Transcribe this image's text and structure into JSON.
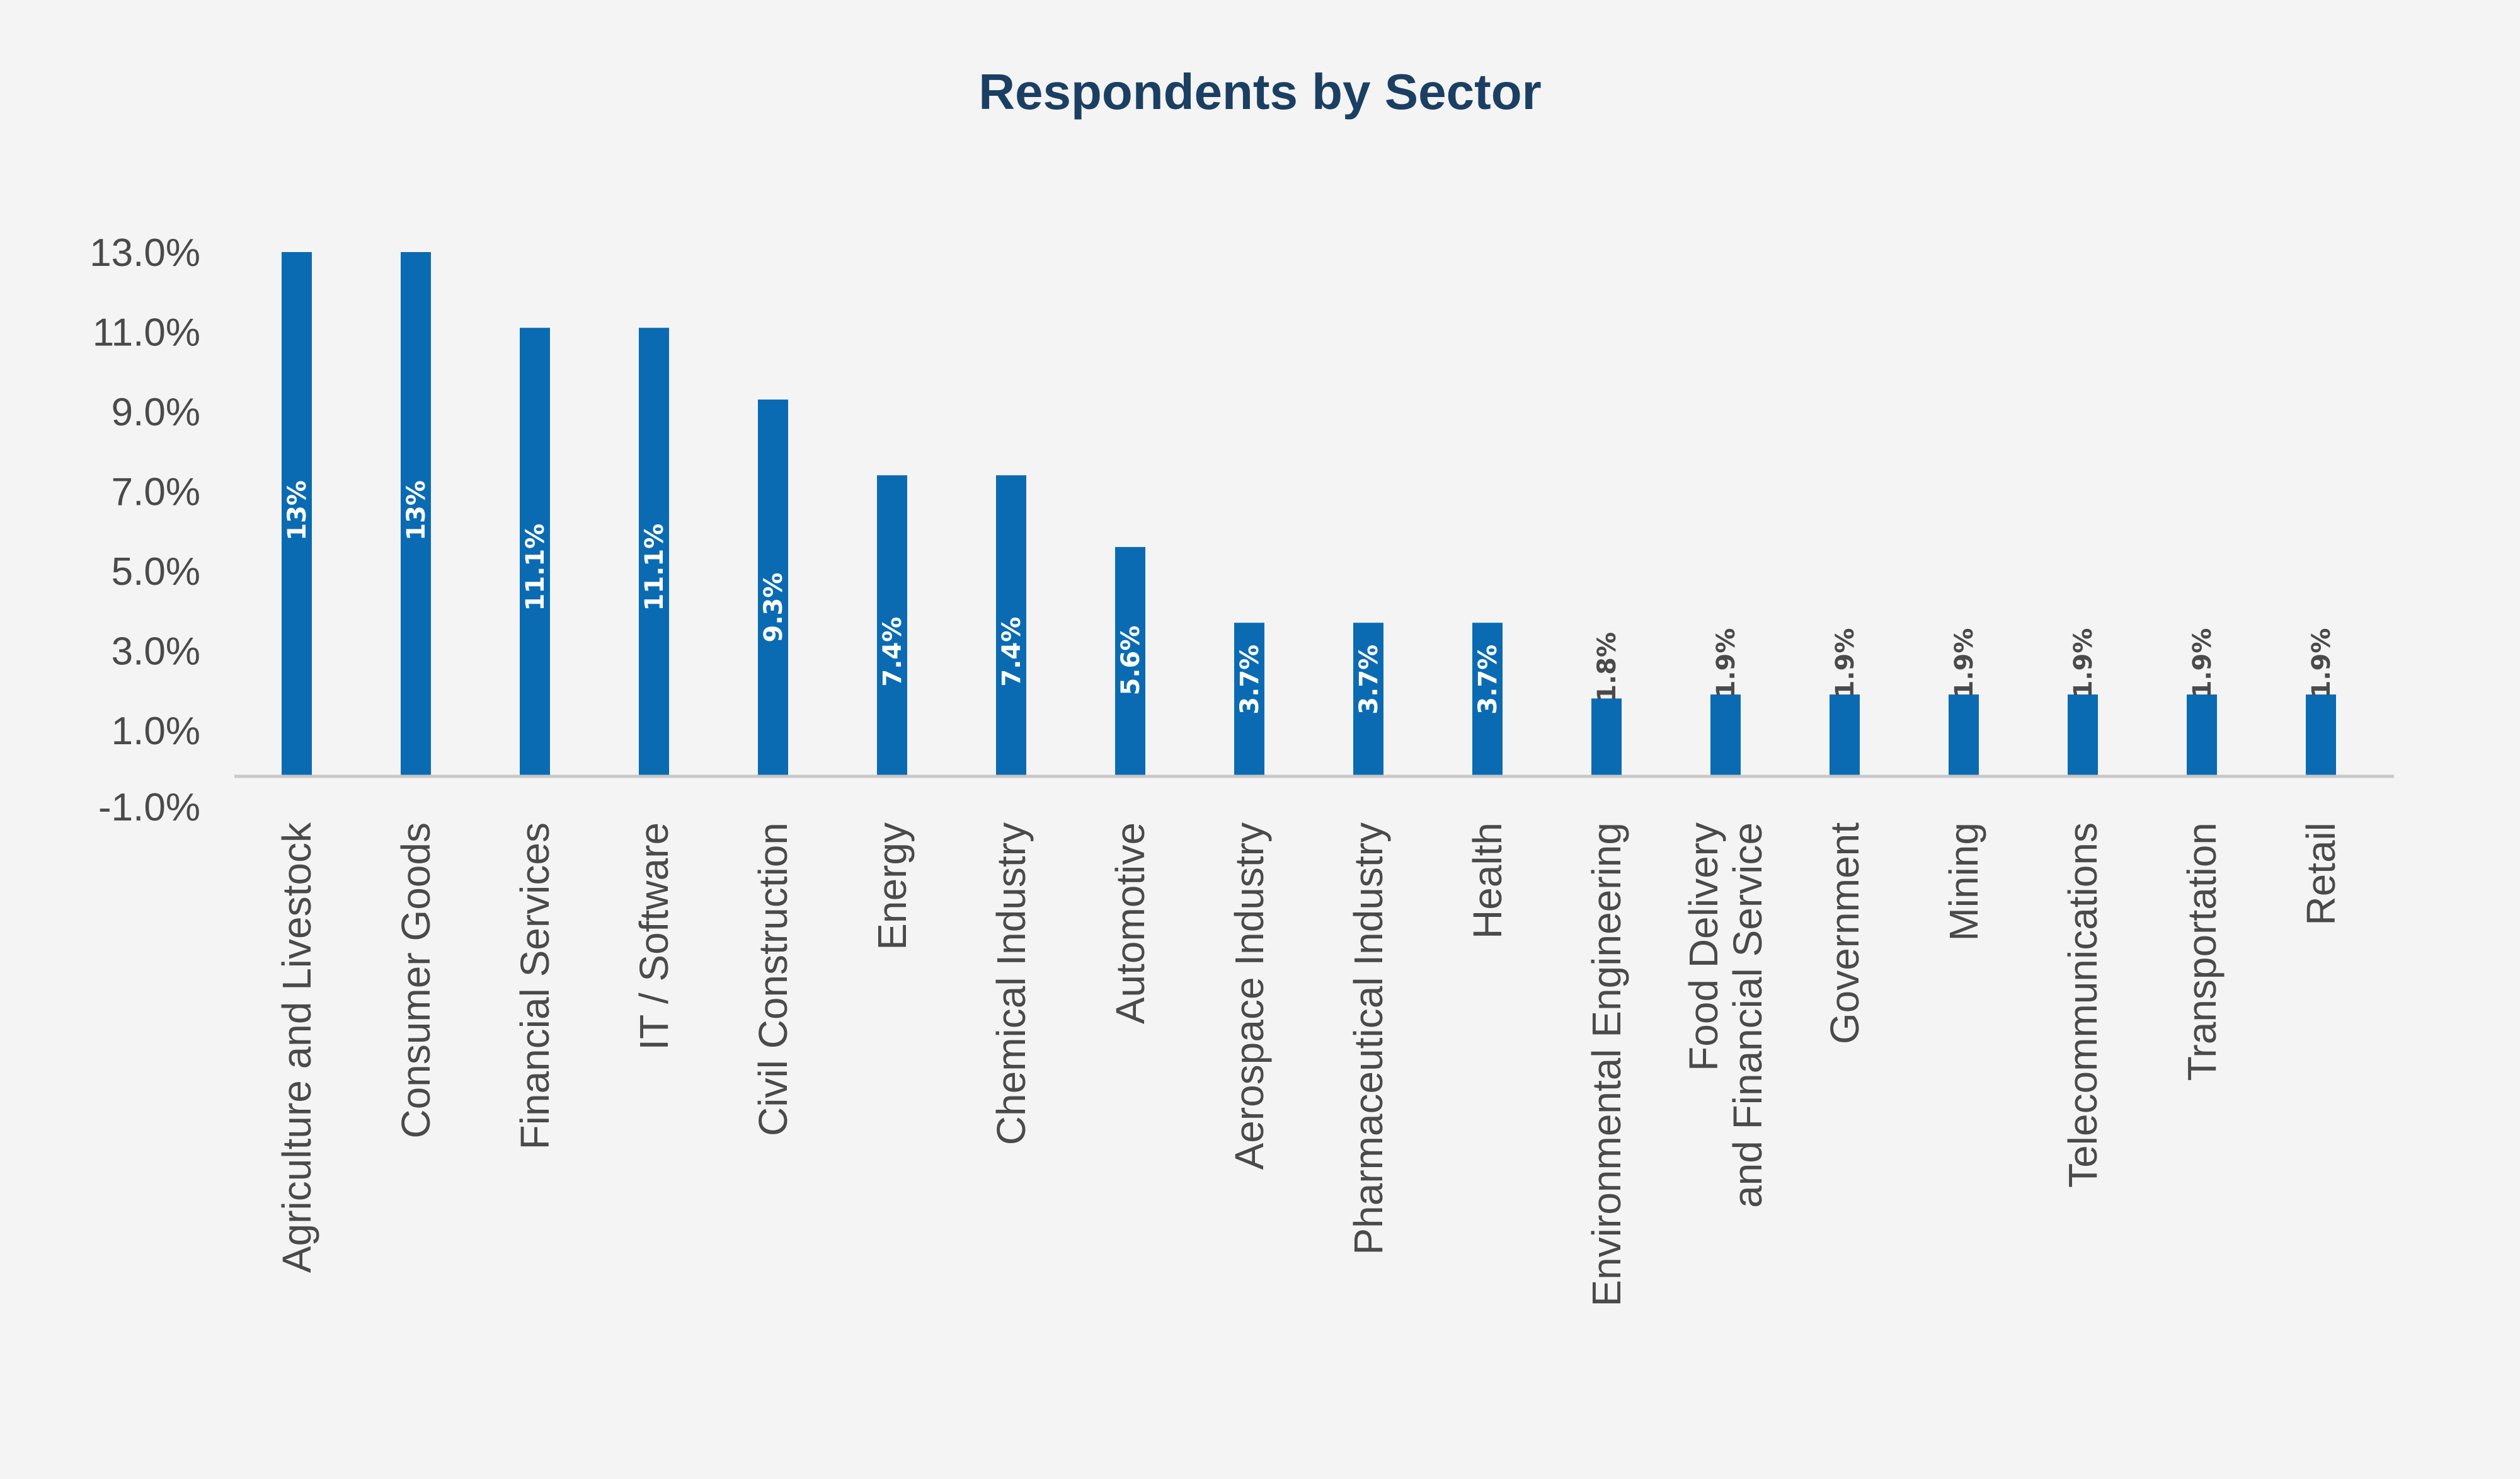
{
  "chart_data": {
    "type": "bar",
    "title": "Respondents by Sector",
    "xlabel": "",
    "ylabel": "",
    "ylim": [
      -1.0,
      14.0
    ],
    "yticks": [
      -1.0,
      1.0,
      3.0,
      5.0,
      7.0,
      9.0,
      11.0,
      13.0
    ],
    "ytick_labels": [
      "-1.0%",
      "1.0%",
      "3.0%",
      "5.0%",
      "7.0%",
      "9.0%",
      "11.0%",
      "13.0%"
    ],
    "grid": false,
    "categories": [
      [
        "Agriculture and Livestock"
      ],
      [
        "Consumer Goods"
      ],
      [
        "Financial Services"
      ],
      [
        "IT / Software"
      ],
      [
        "Civil Construction"
      ],
      [
        "Energy"
      ],
      [
        "Chemical Industry"
      ],
      [
        "Automotive"
      ],
      [
        "Aerospace Industry"
      ],
      [
        "Pharmaceutical Industry"
      ],
      [
        "Health"
      ],
      [
        "Environmental Engineering"
      ],
      [
        "Food Delivery",
        "and Financial Service"
      ],
      [
        "Government"
      ],
      [
        "Mining"
      ],
      [
        "Telecommunications"
      ],
      [
        "Transportation"
      ],
      [
        "Retail"
      ]
    ],
    "values": [
      13.0,
      13.0,
      11.1,
      11.1,
      9.3,
      7.4,
      7.4,
      5.6,
      3.7,
      3.7,
      3.7,
      1.8,
      1.9,
      1.9,
      1.9,
      1.9,
      1.9,
      1.9
    ],
    "data_labels": [
      "13%",
      "13%",
      "11.1%",
      "11.1%",
      "9.3%",
      "7.4%",
      "7.4%",
      "5.6%",
      "3.7%",
      "3.7%",
      "3.7%",
      "1.8%",
      "1.9%",
      "1.9%",
      "1.9%",
      "1.9%",
      "1.9%",
      "1.9%"
    ],
    "colors": {
      "bar": "#0a6bb3",
      "axis_line": "#c8c8c8",
      "label_inside": "#ffffff",
      "label_outside": "#4a4a4a",
      "title": "#1b3f63"
    }
  }
}
